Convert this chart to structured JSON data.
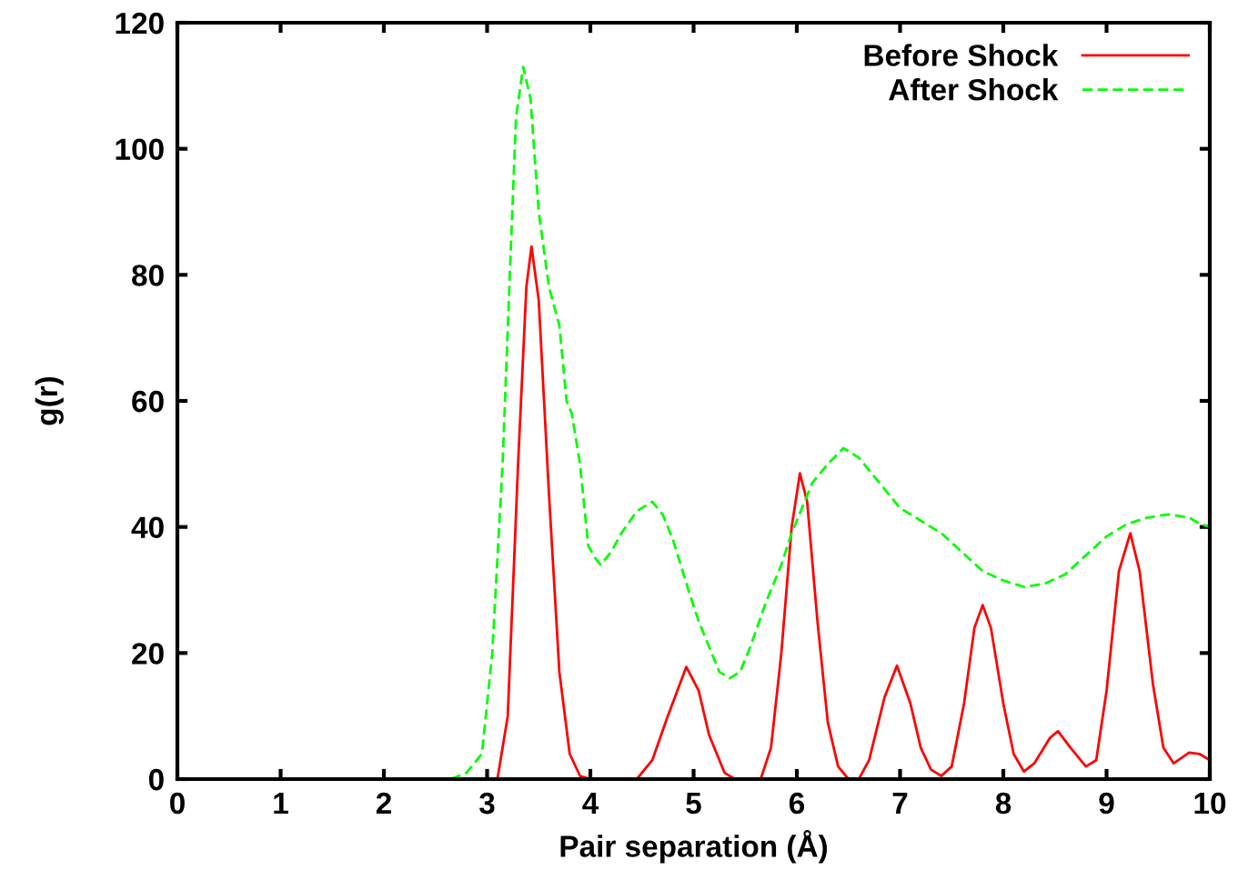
{
  "chart_data": {
    "type": "line",
    "xlabel": "Pair separation (Å)",
    "ylabel": "g(r)",
    "xlim": [
      0,
      10
    ],
    "xticks": [
      0,
      1,
      2,
      3,
      4,
      5,
      6,
      7,
      8,
      9,
      10
    ],
    "ylim": [
      0,
      120
    ],
    "yticks": [
      0,
      20,
      40,
      60,
      80,
      100,
      120
    ],
    "grid": false,
    "legend": "top right",
    "series": [
      {
        "name": "Before Shock",
        "color": "#ff0000",
        "line_style": "solid",
        "x": [
          0,
          3.1,
          3.2,
          3.3,
          3.38,
          3.43,
          3.5,
          3.6,
          3.7,
          3.8,
          3.9,
          4.0,
          4.45,
          4.6,
          4.75,
          4.93,
          5.05,
          5.15,
          5.3,
          5.4,
          5.65,
          5.75,
          5.85,
          5.95,
          6.03,
          6.1,
          6.2,
          6.3,
          6.4,
          6.5,
          6.6,
          6.7,
          6.85,
          6.97,
          7.1,
          7.2,
          7.3,
          7.4,
          7.5,
          7.62,
          7.72,
          7.8,
          7.88,
          8.0,
          8.1,
          8.2,
          8.3,
          8.45,
          8.53,
          8.65,
          8.8,
          8.9,
          9.0,
          9.12,
          9.23,
          9.32,
          9.45,
          9.55,
          9.65,
          9.8,
          9.9,
          10
        ],
        "values": [
          0,
          0,
          10,
          50,
          78,
          84.5,
          76,
          45,
          17,
          4,
          0.5,
          0,
          0,
          3,
          10,
          17.8,
          14,
          7,
          1,
          0,
          0,
          5,
          20,
          40,
          48.5,
          44,
          25,
          9,
          2,
          0,
          0,
          3,
          13,
          18,
          12,
          5,
          1.5,
          0.5,
          2,
          12,
          24,
          27.6,
          24,
          12,
          4,
          1.2,
          2.5,
          6.5,
          7.6,
          5,
          2,
          3,
          14,
          33,
          39,
          33,
          15,
          5,
          2.5,
          4.2,
          4,
          3
        ]
      },
      {
        "name": "After Shock",
        "color": "#00ff00",
        "line_style": "dashed",
        "x": [
          2.65,
          2.8,
          2.95,
          3.05,
          3.15,
          3.22,
          3.28,
          3.35,
          3.42,
          3.5,
          3.6,
          3.7,
          3.77,
          3.82,
          3.9,
          3.98,
          4.05,
          4.1,
          4.2,
          4.3,
          4.45,
          4.6,
          4.7,
          4.8,
          4.95,
          5.05,
          5.15,
          5.25,
          5.35,
          5.45,
          5.55,
          5.7,
          5.85,
          5.95,
          6.05,
          6.15,
          6.3,
          6.45,
          6.6,
          6.75,
          6.9,
          7.0,
          7.2,
          7.4,
          7.6,
          7.8,
          8.0,
          8.2,
          8.4,
          8.6,
          8.8,
          9.0,
          9.2,
          9.4,
          9.6,
          9.8,
          9.9,
          10
        ],
        "values": [
          0,
          1,
          4,
          20,
          50,
          80,
          105,
          113,
          108,
          90,
          78,
          72,
          60,
          58,
          50,
          37,
          35,
          34,
          36,
          39,
          42.5,
          44,
          42,
          38,
          30,
          25,
          21,
          17,
          16,
          17,
          21,
          28,
          34,
          39,
          43,
          47,
          50,
          52.5,
          51,
          48,
          45,
          43,
          41,
          39,
          36,
          33,
          31.5,
          30.5,
          31,
          32.5,
          35.5,
          38.5,
          40.5,
          41.5,
          42,
          41.5,
          40.5,
          40
        ]
      }
    ]
  }
}
